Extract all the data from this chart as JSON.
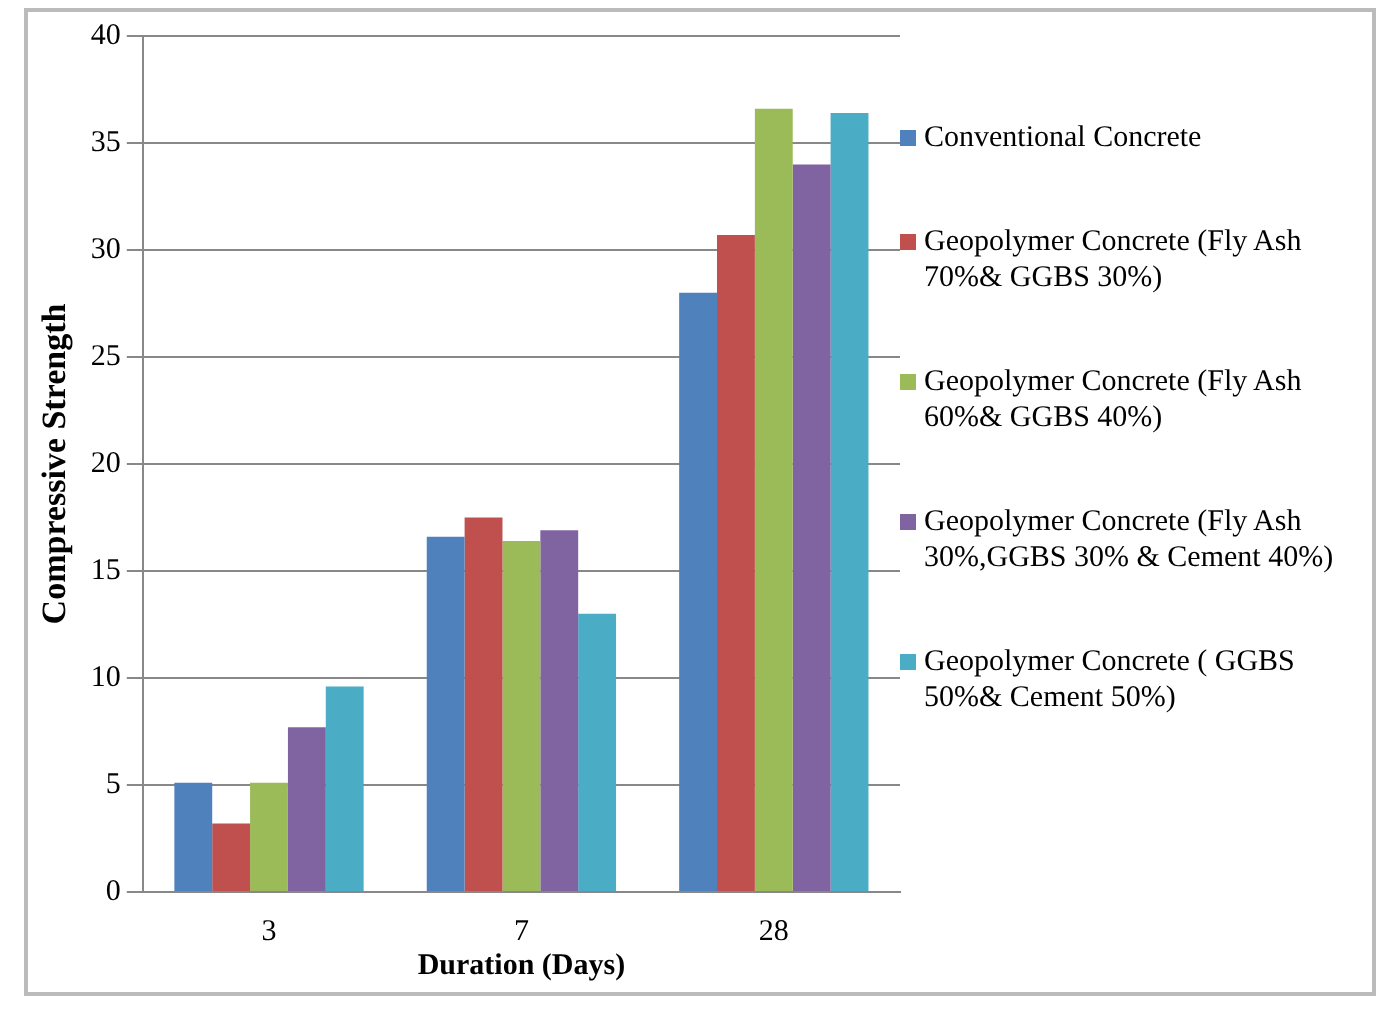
{
  "chart_data": {
    "type": "bar",
    "xlabel": "Duration (Days)",
    "ylabel": "Compressive Strength",
    "categories": [
      "3",
      "7",
      "28"
    ],
    "series": [
      {
        "name": "Conventional Concrete",
        "color": "#4f81bd",
        "values": [
          5.1,
          16.6,
          28.0
        ]
      },
      {
        "name": "Geopolymer Concrete (Fly Ash 70%& GGBS 30%)",
        "color": "#c0504d",
        "values": [
          3.2,
          17.5,
          30.7
        ]
      },
      {
        "name": "Geopolymer Concrete (Fly Ash 60%& GGBS 40%)",
        "color": "#9bbb59",
        "values": [
          5.1,
          16.4,
          36.6
        ]
      },
      {
        "name": "Geopolymer Concrete (Fly Ash 30%,GGBS 30% & Cement 40%)",
        "color": "#8064a2",
        "values": [
          7.7,
          16.9,
          34.0
        ]
      },
      {
        "name": "Geopolymer Concrete ( GGBS 50%& Cement 50%)",
        "color": "#4bacc6",
        "values": [
          9.6,
          13.0,
          36.4
        ]
      }
    ],
    "ylim": [
      0,
      40
    ],
    "yticks": [
      0,
      5,
      10,
      15,
      20,
      25,
      30,
      35,
      40
    ],
    "grid": "y",
    "legend": "right"
  }
}
